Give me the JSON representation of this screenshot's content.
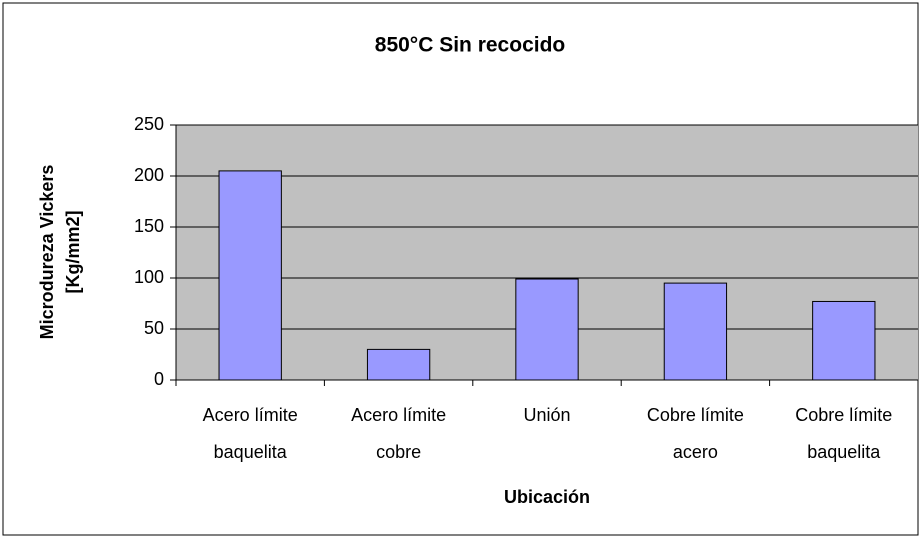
{
  "chart_data": {
    "type": "bar",
    "title": "850°C Sin recocido",
    "y_label": [
      "Microdureza Vickers",
      "[Kg/mm2]"
    ],
    "x_label": "Ubicación",
    "categories": [
      "Acero límite baquelita",
      "Acero límite cobre",
      "Unión",
      "Cobre límite acero",
      "Cobre límite baquelita"
    ],
    "values": [
      205,
      30,
      99,
      95,
      77
    ],
    "color": "#9999ff",
    "ylim": [
      0,
      250
    ],
    "yticks": [
      0,
      50,
      100,
      150,
      200,
      250
    ],
    "grid": true
  }
}
